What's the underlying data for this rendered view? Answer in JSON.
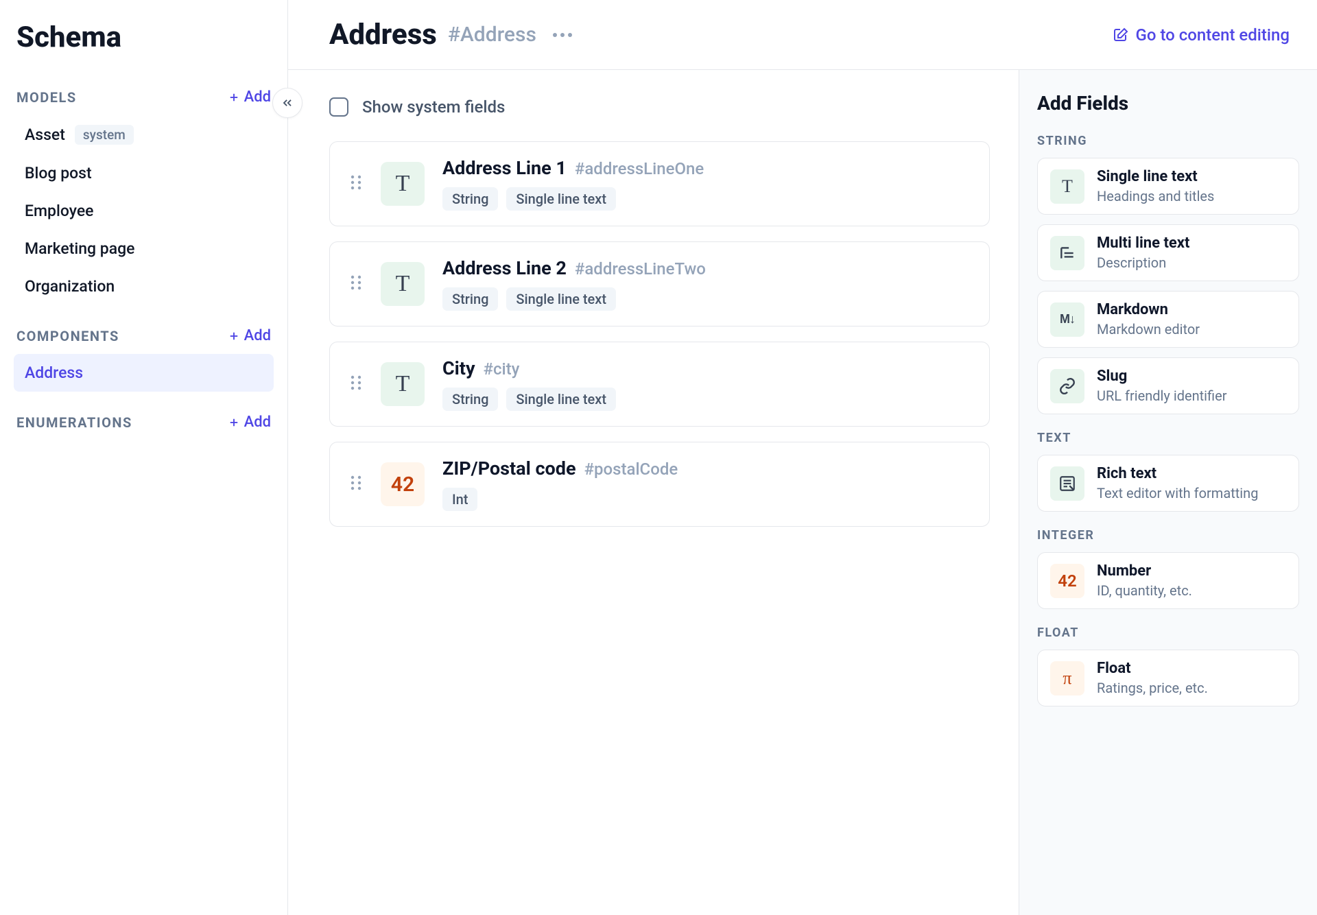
{
  "colors": {
    "primary": "#4f46e5",
    "text": "#0f172a",
    "muted": "#64748b",
    "border": "#e5e7eb",
    "panel_bg": "#f8fafc",
    "icon_green_bg": "#e8f5ed",
    "icon_orange_bg": "#fff5eb",
    "icon_orange_fg": "#c2410c",
    "icon_green_fg": "#374151",
    "tag_bg": "#f1f5f9",
    "tag_fg": "#475569",
    "selected_bg": "#eef2ff"
  },
  "sidebar": {
    "title": "Schema",
    "add_label": "Add",
    "sections": {
      "models": {
        "label": "MODELS",
        "items": [
          {
            "label": "Asset",
            "badge": "system"
          },
          {
            "label": "Blog post"
          },
          {
            "label": "Employee"
          },
          {
            "label": "Marketing page"
          },
          {
            "label": "Organization"
          }
        ]
      },
      "components": {
        "label": "COMPONENTS",
        "items": [
          {
            "label": "Address",
            "selected": true
          }
        ]
      },
      "enumerations": {
        "label": "ENUMERATIONS",
        "items": []
      }
    }
  },
  "header": {
    "title": "Address",
    "handle": "#Address",
    "goto_label": "Go to content editing"
  },
  "main": {
    "system_toggle_label": "Show system fields",
    "fields": [
      {
        "name": "Address Line 1",
        "handle": "#addressLineOne",
        "icon_glyph": "T",
        "icon_style": "string",
        "tags": [
          "String",
          "Single line text"
        ]
      },
      {
        "name": "Address Line 2",
        "handle": "#addressLineTwo",
        "icon_glyph": "T",
        "icon_style": "string",
        "tags": [
          "String",
          "Single line text"
        ]
      },
      {
        "name": "City",
        "handle": "#city",
        "icon_glyph": "T",
        "icon_style": "string",
        "tags": [
          "String",
          "Single line text"
        ]
      },
      {
        "name": "ZIP/Postal code",
        "handle": "#postalCode",
        "icon_glyph": "42",
        "icon_style": "int",
        "tags": [
          "Int"
        ]
      }
    ]
  },
  "panel": {
    "title": "Add Fields",
    "groups": [
      {
        "label": "STRING",
        "types": [
          {
            "name": "Single line text",
            "desc": "Headings and titles",
            "icon": "T",
            "icon_kind": "glyph",
            "style": "green"
          },
          {
            "name": "Multi line text",
            "desc": "Description",
            "icon": "multiline",
            "icon_kind": "svg",
            "style": "green"
          },
          {
            "name": "Markdown",
            "desc": "Markdown editor",
            "icon": "M↓",
            "icon_kind": "md",
            "style": "green"
          },
          {
            "name": "Slug",
            "desc": "URL friendly identifier",
            "icon": "link",
            "icon_kind": "svg",
            "style": "green"
          }
        ]
      },
      {
        "label": "TEXT",
        "types": [
          {
            "name": "Rich text",
            "desc": "Text editor with formatting",
            "icon": "richtext",
            "icon_kind": "svg",
            "style": "green"
          }
        ]
      },
      {
        "label": "INTEGER",
        "types": [
          {
            "name": "Number",
            "desc": "ID, quantity, etc.",
            "icon": "42",
            "icon_kind": "num",
            "style": "orange"
          }
        ]
      },
      {
        "label": "FLOAT",
        "types": [
          {
            "name": "Float",
            "desc": "Ratings, price, etc.",
            "icon": "π",
            "icon_kind": "glyph",
            "style": "orange"
          }
        ]
      }
    ]
  }
}
